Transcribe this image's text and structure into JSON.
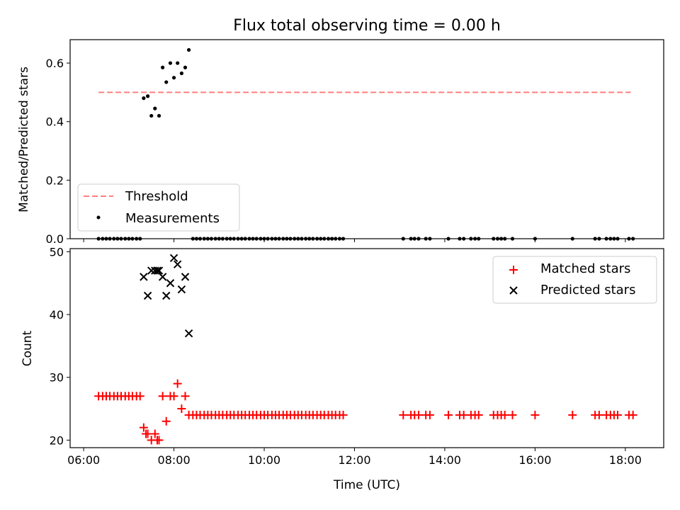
{
  "colors": {
    "threshold": "#ff7f7f",
    "matched": "#ff0000",
    "measure": "#000000",
    "predicted": "#000000"
  },
  "chart_data": [
    {
      "type": "scatter",
      "title": "Flux total observing time = 0.00 h",
      "xlabel": "",
      "ylabel": "Matched/Predicted stars",
      "xlim": [
        5.7,
        18.85
      ],
      "ylim": [
        0.0,
        0.68
      ],
      "yticks": [
        0.0,
        0.2,
        0.4,
        0.6
      ],
      "ytick_labels": [
        "0.0",
        "0.2",
        "0.4",
        "0.6"
      ],
      "threshold": {
        "name": "Threshold",
        "value": 0.5,
        "x": [
          6.33,
          18.12
        ]
      },
      "series": [
        {
          "name": "Measurements",
          "points": [
            [
              6.33,
              0
            ],
            [
              6.42,
              0
            ],
            [
              6.5,
              0
            ],
            [
              6.58,
              0
            ],
            [
              6.67,
              0
            ],
            [
              6.75,
              0
            ],
            [
              6.83,
              0
            ],
            [
              6.92,
              0
            ],
            [
              7.0,
              0
            ],
            [
              7.08,
              0
            ],
            [
              7.17,
              0
            ],
            [
              7.25,
              0
            ],
            [
              7.33,
              0.48
            ],
            [
              7.42,
              0.487
            ],
            [
              7.5,
              0.42
            ],
            [
              7.58,
              0.445
            ],
            [
              7.67,
              0.42
            ],
            [
              7.75,
              0.585
            ],
            [
              7.83,
              0.535
            ],
            [
              7.92,
              0.6
            ],
            [
              8.0,
              0.55
            ],
            [
              8.08,
              0.6
            ],
            [
              8.17,
              0.565
            ],
            [
              8.25,
              0.585
            ],
            [
              8.33,
              0.645
            ],
            [
              8.42,
              0
            ],
            [
              8.5,
              0
            ],
            [
              8.58,
              0
            ],
            [
              8.67,
              0
            ],
            [
              8.75,
              0
            ],
            [
              8.83,
              0
            ],
            [
              8.92,
              0
            ],
            [
              9.0,
              0
            ],
            [
              9.08,
              0
            ],
            [
              9.17,
              0
            ],
            [
              9.25,
              0
            ],
            [
              9.33,
              0
            ],
            [
              9.42,
              0
            ],
            [
              9.5,
              0
            ],
            [
              9.58,
              0
            ],
            [
              9.67,
              0
            ],
            [
              9.75,
              0
            ],
            [
              9.83,
              0
            ],
            [
              9.92,
              0
            ],
            [
              10.0,
              0
            ],
            [
              10.08,
              0
            ],
            [
              10.17,
              0
            ],
            [
              10.25,
              0
            ],
            [
              10.33,
              0
            ],
            [
              10.42,
              0
            ],
            [
              10.5,
              0
            ],
            [
              10.58,
              0
            ],
            [
              10.67,
              0
            ],
            [
              10.75,
              0
            ],
            [
              10.83,
              0
            ],
            [
              10.92,
              0
            ],
            [
              11.0,
              0
            ],
            [
              11.08,
              0
            ],
            [
              11.17,
              0
            ],
            [
              11.25,
              0
            ],
            [
              11.33,
              0
            ],
            [
              11.42,
              0
            ],
            [
              11.5,
              0
            ],
            [
              11.58,
              0
            ],
            [
              11.67,
              0
            ],
            [
              11.75,
              0
            ],
            [
              13.08,
              0
            ],
            [
              13.25,
              0
            ],
            [
              13.33,
              0
            ],
            [
              13.42,
              0
            ],
            [
              13.58,
              0
            ],
            [
              13.67,
              0
            ],
            [
              14.08,
              0
            ],
            [
              14.33,
              0
            ],
            [
              14.42,
              0
            ],
            [
              14.58,
              0
            ],
            [
              14.67,
              0
            ],
            [
              14.75,
              0
            ],
            [
              15.08,
              0
            ],
            [
              15.17,
              0
            ],
            [
              15.25,
              0
            ],
            [
              15.33,
              0
            ],
            [
              15.5,
              0
            ],
            [
              16.0,
              0
            ],
            [
              16.83,
              0
            ],
            [
              17.33,
              0
            ],
            [
              17.42,
              0
            ],
            [
              17.58,
              0
            ],
            [
              17.67,
              0
            ],
            [
              17.75,
              0
            ],
            [
              17.83,
              0
            ],
            [
              18.08,
              0
            ],
            [
              18.17,
              0
            ]
          ]
        }
      ],
      "legend": {
        "position": "lower-left",
        "entries": [
          "Threshold",
          "Measurements"
        ]
      },
      "grid": false
    },
    {
      "type": "scatter",
      "title": "",
      "xlabel": "Time (UTC)",
      "ylabel": "Count",
      "xlim": [
        5.7,
        18.85
      ],
      "ylim": [
        18.8,
        50.5
      ],
      "xticks": [
        6,
        8,
        10,
        12,
        14,
        16,
        18
      ],
      "xtick_labels": [
        "06:00",
        "08:00",
        "10:00",
        "12:00",
        "14:00",
        "16:00",
        "18:00"
      ],
      "yticks": [
        20,
        30,
        40,
        50
      ],
      "ytick_labels": [
        "20",
        "30",
        "40",
        "50"
      ],
      "series": [
        {
          "name": "Matched stars",
          "marker": "+",
          "points": [
            [
              6.33,
              27
            ],
            [
              6.42,
              27
            ],
            [
              6.5,
              27
            ],
            [
              6.58,
              27
            ],
            [
              6.67,
              27
            ],
            [
              6.75,
              27
            ],
            [
              6.83,
              27
            ],
            [
              6.92,
              27
            ],
            [
              7.0,
              27
            ],
            [
              7.08,
              27
            ],
            [
              7.17,
              27
            ],
            [
              7.25,
              27
            ],
            [
              7.33,
              22
            ],
            [
              7.38,
              21
            ],
            [
              7.42,
              21
            ],
            [
              7.5,
              20
            ],
            [
              7.58,
              21
            ],
            [
              7.63,
              20
            ],
            [
              7.67,
              20
            ],
            [
              7.75,
              27
            ],
            [
              7.83,
              23
            ],
            [
              7.92,
              27
            ],
            [
              8.0,
              27
            ],
            [
              8.08,
              29
            ],
            [
              8.17,
              25
            ],
            [
              8.25,
              27
            ],
            [
              8.33,
              24
            ],
            [
              8.42,
              24
            ],
            [
              8.5,
              24
            ],
            [
              8.58,
              24
            ],
            [
              8.67,
              24
            ],
            [
              8.75,
              24
            ],
            [
              8.83,
              24
            ],
            [
              8.92,
              24
            ],
            [
              9.0,
              24
            ],
            [
              9.08,
              24
            ],
            [
              9.17,
              24
            ],
            [
              9.25,
              24
            ],
            [
              9.33,
              24
            ],
            [
              9.42,
              24
            ],
            [
              9.5,
              24
            ],
            [
              9.58,
              24
            ],
            [
              9.67,
              24
            ],
            [
              9.75,
              24
            ],
            [
              9.83,
              24
            ],
            [
              9.92,
              24
            ],
            [
              10.0,
              24
            ],
            [
              10.08,
              24
            ],
            [
              10.17,
              24
            ],
            [
              10.25,
              24
            ],
            [
              10.33,
              24
            ],
            [
              10.42,
              24
            ],
            [
              10.5,
              24
            ],
            [
              10.58,
              24
            ],
            [
              10.67,
              24
            ],
            [
              10.75,
              24
            ],
            [
              10.83,
              24
            ],
            [
              10.92,
              24
            ],
            [
              11.0,
              24
            ],
            [
              11.08,
              24
            ],
            [
              11.17,
              24
            ],
            [
              11.25,
              24
            ],
            [
              11.33,
              24
            ],
            [
              11.42,
              24
            ],
            [
              11.5,
              24
            ],
            [
              11.58,
              24
            ],
            [
              11.67,
              24
            ],
            [
              11.75,
              24
            ],
            [
              13.08,
              24
            ],
            [
              13.25,
              24
            ],
            [
              13.33,
              24
            ],
            [
              13.42,
              24
            ],
            [
              13.58,
              24
            ],
            [
              13.67,
              24
            ],
            [
              14.08,
              24
            ],
            [
              14.33,
              24
            ],
            [
              14.42,
              24
            ],
            [
              14.58,
              24
            ],
            [
              14.67,
              24
            ],
            [
              14.75,
              24
            ],
            [
              15.08,
              24
            ],
            [
              15.17,
              24
            ],
            [
              15.25,
              24
            ],
            [
              15.33,
              24
            ],
            [
              15.5,
              24
            ],
            [
              16.0,
              24
            ],
            [
              16.83,
              24
            ],
            [
              17.33,
              24
            ],
            [
              17.42,
              24
            ],
            [
              17.58,
              24
            ],
            [
              17.67,
              24
            ],
            [
              17.75,
              24
            ],
            [
              17.83,
              24
            ],
            [
              18.08,
              24
            ],
            [
              18.17,
              24
            ]
          ]
        },
        {
          "name": "Predicted stars",
          "marker": "x",
          "points": [
            [
              7.33,
              46
            ],
            [
              7.42,
              43
            ],
            [
              7.5,
              47
            ],
            [
              7.58,
              47
            ],
            [
              7.63,
              47
            ],
            [
              7.67,
              47
            ],
            [
              7.75,
              46
            ],
            [
              7.83,
              43
            ],
            [
              7.92,
              45
            ],
            [
              8.0,
              49
            ],
            [
              8.08,
              48
            ],
            [
              8.17,
              44
            ],
            [
              8.25,
              46
            ],
            [
              8.33,
              37
            ]
          ]
        }
      ],
      "legend": {
        "position": "top-right",
        "entries": [
          "Matched stars",
          "Predicted stars"
        ]
      },
      "grid": false
    }
  ]
}
